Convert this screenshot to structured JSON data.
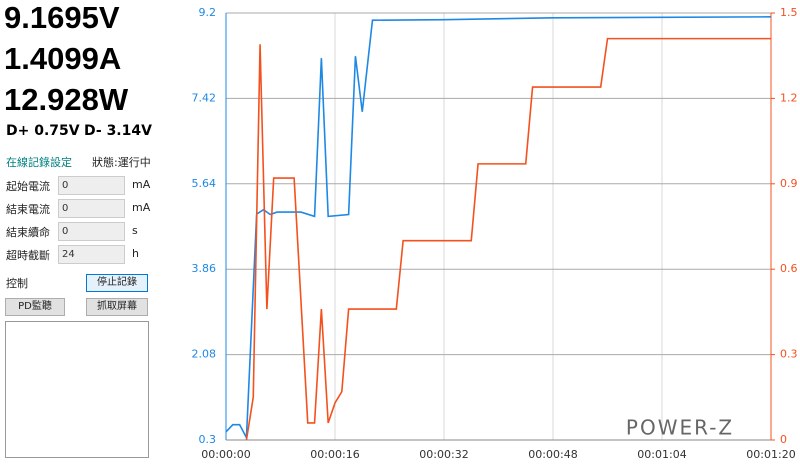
{
  "readings": {
    "voltage": "9.1695V",
    "current": "1.4099A",
    "power": "12.928W",
    "dplus": "D+ 0.75V",
    "dminus": "D- 3.14V"
  },
  "settings": {
    "title": "在線記錄設定",
    "status": "狀態:運行中",
    "rows": [
      {
        "label": "起始電流",
        "value": 0,
        "unit": "mA"
      },
      {
        "label": "結束電流",
        "value": 0,
        "unit": "mA"
      },
      {
        "label": "結束續命",
        "value": 0,
        "unit": "s"
      },
      {
        "label": "超時截斷",
        "value": 24,
        "unit": "h"
      }
    ]
  },
  "control": {
    "label": "控制",
    "stop_button": "停止記錄",
    "pd_button": "PD監聽",
    "capture_button": "抓取屏幕"
  },
  "logo": "POWER-Z",
  "chart_data": {
    "type": "line",
    "xlim": [
      0,
      80
    ],
    "xticks": [
      {
        "value": 0,
        "label": "00:00:00"
      },
      {
        "value": 16,
        "label": "00:00:16"
      },
      {
        "value": 32,
        "label": "00:00:32"
      },
      {
        "value": 48,
        "label": "00:00:48"
      },
      {
        "value": 64,
        "label": "00:01:04"
      },
      {
        "value": 80,
        "label": "00:01:20"
      }
    ],
    "ylim": [
      0.3,
      9.2
    ],
    "yticks": [
      0.3,
      2.08,
      3.86,
      5.64,
      7.42,
      9.2
    ],
    "y2lim": [
      0,
      1.5
    ],
    "y2ticks": [
      0,
      0.3,
      0.6,
      0.9,
      1.2,
      1.5
    ],
    "grid": true,
    "series": [
      {
        "color": "#1e88e5",
        "x": [
          0,
          1,
          2,
          3,
          4.5,
          5.5,
          6.5,
          7.5,
          11,
          13,
          14,
          15,
          18,
          19,
          20,
          21.5,
          32,
          48,
          80
        ],
        "values": [
          0.47,
          0.62,
          0.62,
          0.35,
          5.01,
          5.1,
          5.0,
          5.05,
          5.05,
          4.96,
          8.26,
          4.96,
          5.0,
          8.3,
          7.14,
          9.05,
          9.06,
          9.1,
          9.12
        ]
      },
      {
        "color": "#f4511e",
        "axis": "y2",
        "x": [
          3,
          4,
          5,
          6,
          7,
          10,
          12,
          13,
          14,
          15,
          16,
          17,
          18,
          25,
          26,
          36,
          37,
          44,
          45,
          55,
          56,
          80
        ],
        "values": [
          0,
          0.15,
          1.39,
          0.46,
          0.92,
          0.92,
          0.06,
          0.06,
          0.46,
          0.06,
          0.13,
          0.17,
          0.46,
          0.46,
          0.7,
          0.7,
          0.97,
          0.97,
          1.24,
          1.24,
          1.41,
          1.41
        ]
      }
    ]
  }
}
